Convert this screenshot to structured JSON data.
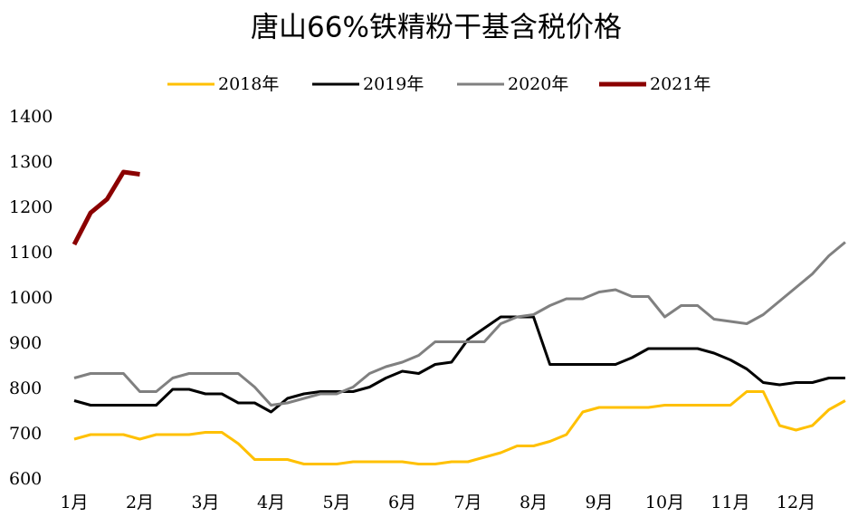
{
  "chart_data": {
    "type": "line",
    "title": "唐山66%铁精粉干基含税价格",
    "x": [
      1,
      1.25,
      1.5,
      1.75,
      2,
      2.25,
      2.5,
      2.75,
      3,
      3.25,
      3.5,
      3.75,
      4,
      4.25,
      4.5,
      4.75,
      5,
      5.25,
      5.5,
      5.75,
      6,
      6.25,
      6.5,
      6.75,
      7,
      7.25,
      7.5,
      7.75,
      8,
      8.25,
      8.5,
      8.75,
      9,
      9.25,
      9.5,
      9.75,
      10,
      10.25,
      10.5,
      10.75,
      11,
      11.25,
      11.5,
      11.75,
      12,
      12.25,
      12.5,
      12.75
    ],
    "xlim": [
      1,
      12.95
    ],
    "xticks": [
      {
        "value": 1,
        "label": "1月"
      },
      {
        "value": 2,
        "label": "2月"
      },
      {
        "value": 3,
        "label": "3月"
      },
      {
        "value": 4,
        "label": "4月"
      },
      {
        "value": 5,
        "label": "5月"
      },
      {
        "value": 6,
        "label": "6月"
      },
      {
        "value": 7,
        "label": "7月"
      },
      {
        "value": 8,
        "label": "8月"
      },
      {
        "value": 9,
        "label": "9月"
      },
      {
        "value": 10,
        "label": "10月"
      },
      {
        "value": 11,
        "label": "11月"
      },
      {
        "value": 12,
        "label": "12月"
      }
    ],
    "ylim": [
      600,
      1400
    ],
    "yticks": [
      600,
      700,
      800,
      900,
      1000,
      1100,
      1200,
      1300,
      1400
    ],
    "grid": false,
    "legend": "top",
    "series": [
      {
        "name": "2018年",
        "color": "#FFC000",
        "width": 3,
        "values": [
          690,
          700,
          700,
          700,
          690,
          700,
          700,
          700,
          705,
          705,
          680,
          645,
          645,
          645,
          635,
          635,
          635,
          640,
          640,
          640,
          640,
          635,
          635,
          640,
          640,
          650,
          660,
          675,
          675,
          685,
          700,
          750,
          760,
          760,
          760,
          760,
          765,
          765,
          765,
          765,
          765,
          795,
          795,
          720,
          710,
          720,
          755,
          775
        ]
      },
      {
        "name": "2019年",
        "color": "#000000",
        "width": 3,
        "values": [
          775,
          765,
          765,
          765,
          765,
          765,
          800,
          800,
          790,
          790,
          770,
          770,
          750,
          780,
          790,
          795,
          795,
          795,
          805,
          825,
          840,
          835,
          855,
          860,
          910,
          935,
          960,
          960,
          960,
          855,
          855,
          855,
          855,
          855,
          870,
          890,
          890,
          890,
          890,
          880,
          865,
          845,
          815,
          810,
          815,
          815,
          825,
          825
        ]
      },
      {
        "name": "2020年",
        "color": "#808080",
        "width": 3,
        "values": [
          825,
          835,
          835,
          835,
          795,
          795,
          825,
          835,
          835,
          835,
          835,
          805,
          765,
          770,
          780,
          790,
          790,
          805,
          835,
          850,
          860,
          875,
          905,
          905,
          905,
          905,
          945,
          960,
          965,
          985,
          1000,
          1000,
          1015,
          1020,
          1005,
          1005,
          960,
          985,
          985,
          955,
          950,
          945,
          965,
          995,
          1025,
          1055,
          1095,
          1125
        ]
      },
      {
        "name": "2021年",
        "color": "#8B0000",
        "width": 5,
        "values": [
          1120,
          1190,
          1220,
          1280,
          1275,
          null,
          null,
          null,
          null,
          null,
          null,
          null,
          null,
          null,
          null,
          null,
          null,
          null,
          null,
          null,
          null,
          null,
          null,
          null,
          null,
          null,
          null,
          null,
          null,
          null,
          null,
          null,
          null,
          null,
          null,
          null,
          null,
          null,
          null,
          null,
          null,
          null,
          null,
          null,
          null,
          null,
          null,
          null
        ]
      }
    ]
  }
}
